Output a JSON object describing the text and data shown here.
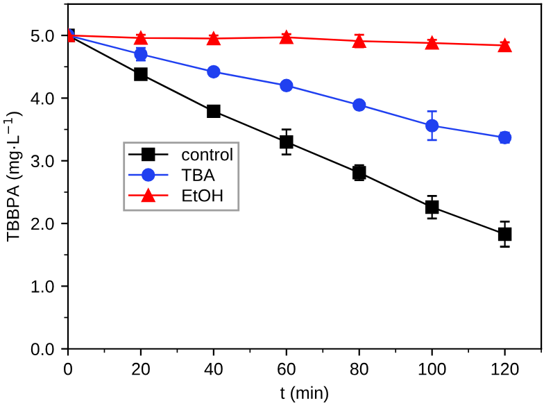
{
  "chart_data": {
    "type": "line",
    "xlabel": "t (min)",
    "ylabel": "TBBPA (mg·L$^{−1}$)",
    "x": [
      0,
      20,
      40,
      60,
      80,
      100,
      120
    ],
    "series": [
      {
        "name": "control",
        "color": "#000000",
        "marker": "square",
        "values": [
          5.0,
          4.38,
          3.79,
          3.3,
          2.81,
          2.26,
          1.83
        ],
        "errors": [
          null,
          0.05,
          0.05,
          0.2,
          0.12,
          0.18,
          0.2
        ]
      },
      {
        "name": "TBA",
        "color": "#2040f0",
        "marker": "circle",
        "values": [
          5.0,
          4.7,
          4.42,
          4.2,
          3.89,
          3.56,
          3.37
        ],
        "errors": [
          null,
          0.1,
          0.05,
          0.05,
          0.05,
          0.23,
          0.08
        ]
      },
      {
        "name": "EtOH",
        "color": "#ff0000",
        "marker": "triangle",
        "values": [
          5.0,
          4.96,
          4.95,
          4.97,
          4.91,
          4.88,
          4.84
        ],
        "errors": [
          null,
          0.05,
          0.05,
          0.05,
          0.1,
          0.05,
          0.05
        ]
      }
    ],
    "xlim": [
      0,
      130
    ],
    "xticks": [
      0,
      20,
      40,
      60,
      80,
      100,
      120
    ],
    "ylim": [
      0,
      5.5
    ],
    "yticks": [
      {
        "value": 0,
        "label": "0.0"
      },
      {
        "value": 1,
        "label": "1.0"
      },
      {
        "value": 2,
        "label": "2.0"
      },
      {
        "value": 3,
        "label": "3.0"
      },
      {
        "value": 4,
        "label": "4.0"
      },
      {
        "value": 5,
        "label": "5.0"
      }
    ],
    "legend": "left",
    "grid": false,
    "line_style": "solid"
  }
}
